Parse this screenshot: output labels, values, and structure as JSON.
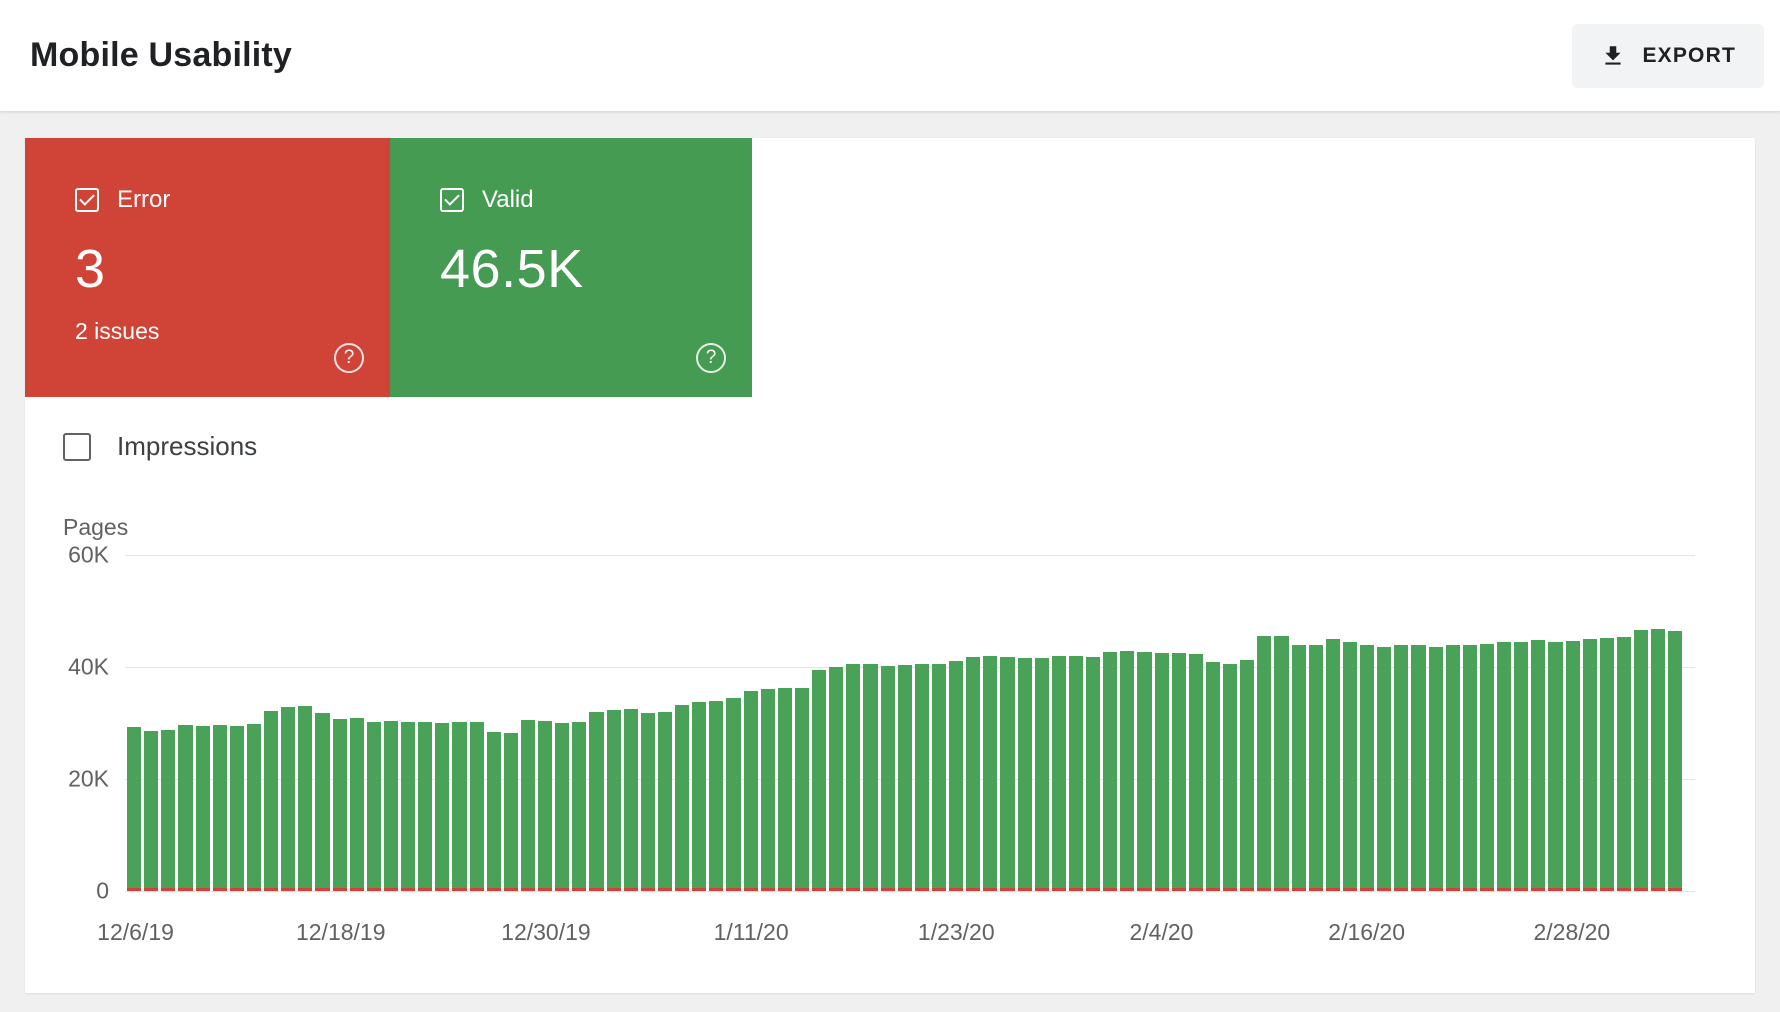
{
  "header": {
    "title": "Mobile Usability",
    "export_label": "EXPORT"
  },
  "cards": {
    "error": {
      "label": "Error",
      "value": "3",
      "sub": "2 issues",
      "color": "#d04437",
      "checked": true
    },
    "valid": {
      "label": "Valid",
      "value": "46.5K",
      "color": "#459b52",
      "checked": true
    }
  },
  "impressions": {
    "label": "Impressions",
    "checked": false
  },
  "chart_data": {
    "type": "bar",
    "title": "",
    "xlabel": "",
    "ylabel": "Pages",
    "ylim": [
      0,
      60000
    ],
    "grid": true,
    "legend_position": "none",
    "y_ticks": [
      {
        "label": "60K",
        "value": 60000
      },
      {
        "label": "40K",
        "value": 40000
      },
      {
        "label": "20K",
        "value": 20000
      },
      {
        "label": "0",
        "value": 0
      }
    ],
    "x_tick_labels": [
      "12/6/19",
      "12/18/19",
      "12/30/19",
      "1/11/20",
      "1/23/20",
      "2/4/20",
      "2/16/20",
      "2/28/20"
    ],
    "x_tick_indices": [
      0,
      12,
      24,
      36,
      48,
      60,
      72,
      84
    ],
    "series": [
      {
        "name": "Valid",
        "color": "#4aa158",
        "values": [
          29300,
          28500,
          28700,
          29700,
          29500,
          29600,
          29500,
          29800,
          32100,
          32800,
          33000,
          31700,
          30800,
          30900,
          30200,
          30300,
          30100,
          30200,
          30000,
          30200,
          30100,
          28400,
          28200,
          30600,
          30300,
          30000,
          30100,
          32000,
          32400,
          32500,
          31800,
          32000,
          33200,
          33800,
          33900,
          34500,
          35800,
          36100,
          36300,
          36200,
          39500,
          40000,
          40600,
          40500,
          40200,
          40400,
          40500,
          40600,
          41000,
          41700,
          42000,
          41800,
          41600,
          41600,
          41900,
          42000,
          41700,
          42600,
          42900,
          42600,
          42500,
          42500,
          42400,
          40900,
          40600,
          41200,
          45500,
          45600,
          44000,
          44000,
          45000,
          44500,
          44000,
          43600,
          44000,
          44000,
          43600,
          44000,
          44000,
          44100,
          44400,
          44400,
          44900,
          44500,
          44600,
          45000,
          45100,
          45400,
          46600,
          46700,
          46500
        ]
      },
      {
        "name": "Error",
        "color": "#d04437",
        "values": [
          3,
          3,
          3,
          3,
          3,
          3,
          3,
          3,
          3,
          3,
          3,
          3,
          3,
          3,
          3,
          3,
          3,
          3,
          3,
          3,
          3,
          3,
          3,
          3,
          3,
          3,
          3,
          3,
          3,
          3,
          3,
          3,
          3,
          3,
          3,
          3,
          3,
          3,
          3,
          3,
          3,
          3,
          3,
          3,
          3,
          3,
          3,
          3,
          3,
          3,
          3,
          3,
          3,
          3,
          3,
          3,
          3,
          3,
          3,
          3,
          3,
          3,
          3,
          3,
          3,
          3,
          3,
          3,
          3,
          3,
          3,
          3,
          3,
          3,
          3,
          3,
          3,
          3,
          3,
          3,
          3,
          3,
          3,
          3,
          3,
          3,
          3,
          3,
          3,
          3,
          3
        ]
      }
    ]
  },
  "colors": {
    "background": "#f0f0f0",
    "surface": "#ffffff",
    "axis_text": "#616161",
    "gridline": "#e4e4e4",
    "title_text": "#202124",
    "export_button_bg": "#f1f3f4"
  }
}
